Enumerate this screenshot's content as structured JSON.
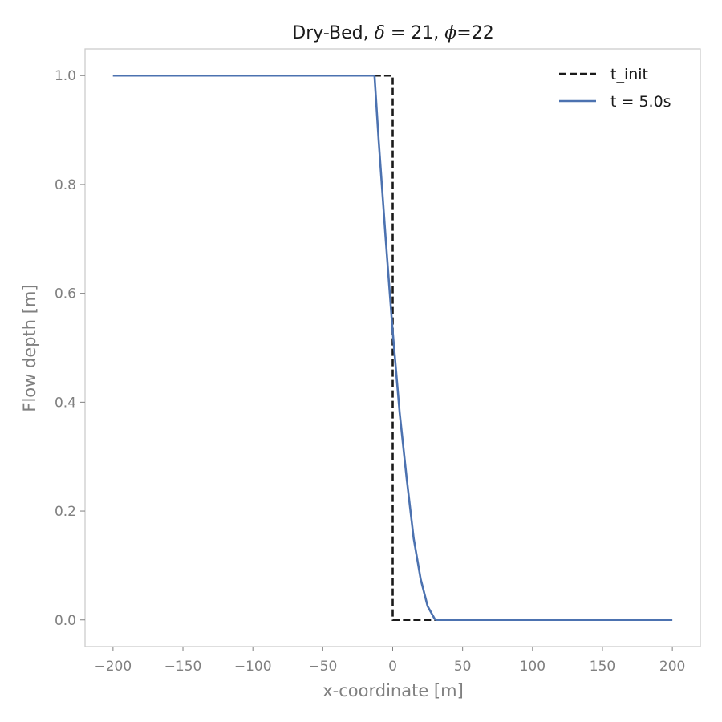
{
  "chart_data": {
    "type": "line",
    "title": {
      "prefix": "Dry-Bed, ",
      "delta_symbol": "δ",
      "delta_eq": " = 21, ",
      "phi_symbol": "ϕ",
      "phi_eq": "=22"
    },
    "xlabel": "x-coordinate [m]",
    "ylabel": "Flow depth [m]",
    "xlim": [
      -220,
      220
    ],
    "ylim": [
      -0.049,
      1.049
    ],
    "xticks": [
      -200,
      -150,
      -100,
      -50,
      0,
      50,
      100,
      150,
      200
    ],
    "xtick_labels": [
      "−200",
      "−150",
      "−100",
      "−50",
      "0",
      "50",
      "100",
      "150",
      "200"
    ],
    "yticks": [
      0.0,
      0.2,
      0.4,
      0.6,
      0.8,
      1.0
    ],
    "ytick_labels": [
      "0.0",
      "0.2",
      "0.4",
      "0.6",
      "0.8",
      "1.0"
    ],
    "grid": false,
    "legend_position": "top-right",
    "series": [
      {
        "name": "t_init",
        "color": "#1a1a1a",
        "style": "dashed",
        "x": [
          -200,
          0,
          0,
          200
        ],
        "y": [
          1.0,
          1.0,
          0.0,
          0.0
        ]
      },
      {
        "name": "t = 5.0s",
        "color": "#4c72b0",
        "style": "solid",
        "x": [
          -200,
          -13,
          -10,
          -5,
          0,
          5,
          10,
          15,
          20,
          25,
          30,
          31,
          50,
          100,
          150,
          200
        ],
        "y": [
          1.0,
          1.0,
          0.88,
          0.7,
          0.53,
          0.38,
          0.26,
          0.15,
          0.075,
          0.025,
          0.002,
          0.0,
          0.0,
          0.0,
          0.0,
          0.0
        ]
      }
    ]
  }
}
